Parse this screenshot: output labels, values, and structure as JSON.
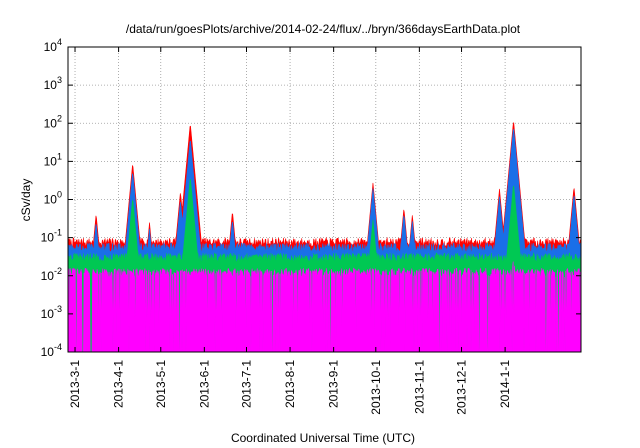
{
  "chart_data": {
    "type": "area",
    "title": "/data/run/goesPlots/archive/2014-02-24/flux/../bryn/366daysEarthData.plot",
    "xlabel": "Coordinated Universal Time (UTC)",
    "ylabel": "cSv/day",
    "yscale": "log",
    "ylim": [
      0.0001,
      10000
    ],
    "y_ticks": [
      {
        "value": 0.0001,
        "base": "10",
        "exp": "-4"
      },
      {
        "value": 0.001,
        "base": "10",
        "exp": "-3"
      },
      {
        "value": 0.01,
        "base": "10",
        "exp": "-2"
      },
      {
        "value": 0.1,
        "base": "10",
        "exp": "-1"
      },
      {
        "value": 1,
        "base": "10",
        "exp": "0"
      },
      {
        "value": 10,
        "base": "10",
        "exp": "1"
      },
      {
        "value": 100,
        "base": "10",
        "exp": "2"
      },
      {
        "value": 1000,
        "base": "10",
        "exp": "3"
      },
      {
        "value": 10000,
        "base": "10",
        "exp": "4"
      }
    ],
    "xlim": [
      "2013-02-24",
      "2014-02-24"
    ],
    "x_ticks": [
      "2013-3-1",
      "2013-4-1",
      "2013-5-1",
      "2013-6-1",
      "2013-7-1",
      "2013-8-1",
      "2013-9-1",
      "2013-10-1",
      "2013-11-1",
      "2013-12-1",
      "2014-1-1"
    ],
    "grid": true,
    "series": [
      {
        "color": "#ff0000",
        "baseline": 0.075,
        "peaks": [
          [
            "2013-03-16",
            0.42
          ],
          [
            "2013-04-11",
            9.0
          ],
          [
            "2013-04-23",
            0.25
          ],
          [
            "2013-05-15",
            1.6
          ],
          [
            "2013-05-22",
            100
          ],
          [
            "2013-06-21",
            0.5
          ],
          [
            "2013-09-29",
            2.8
          ],
          [
            "2013-10-21",
            0.6
          ],
          [
            "2013-10-27",
            0.4
          ],
          [
            "2013-12-28",
            1.9
          ],
          [
            "2014-01-07",
            120
          ],
          [
            "2014-02-19",
            2.2
          ]
        ]
      },
      {
        "color": "#1a6fe8",
        "baseline": 0.055,
        "peaks": [
          [
            "2013-03-16",
            0.25
          ],
          [
            "2013-04-11",
            5.5
          ],
          [
            "2013-04-23",
            0.17
          ],
          [
            "2013-05-15",
            0.95
          ],
          [
            "2013-05-22",
            40
          ],
          [
            "2013-06-21",
            0.3
          ],
          [
            "2013-09-29",
            2.0
          ],
          [
            "2013-10-21",
            0.42
          ],
          [
            "2013-10-27",
            0.28
          ],
          [
            "2013-12-28",
            1.2
          ],
          [
            "2014-01-07",
            80
          ],
          [
            "2014-02-19",
            1.4
          ]
        ]
      },
      {
        "color": "#00c853",
        "baseline": 0.03,
        "peaks": [
          [
            "2013-04-11",
            1.1
          ],
          [
            "2013-05-22",
            4.0
          ],
          [
            "2013-09-29",
            0.3
          ],
          [
            "2014-01-07",
            2.6
          ]
        ]
      },
      {
        "color": "#ff00ff",
        "baseline": 0.012,
        "floor": 0.0001,
        "peaks": [
          [
            "2014-01-07",
            0.03
          ]
        ]
      }
    ]
  }
}
